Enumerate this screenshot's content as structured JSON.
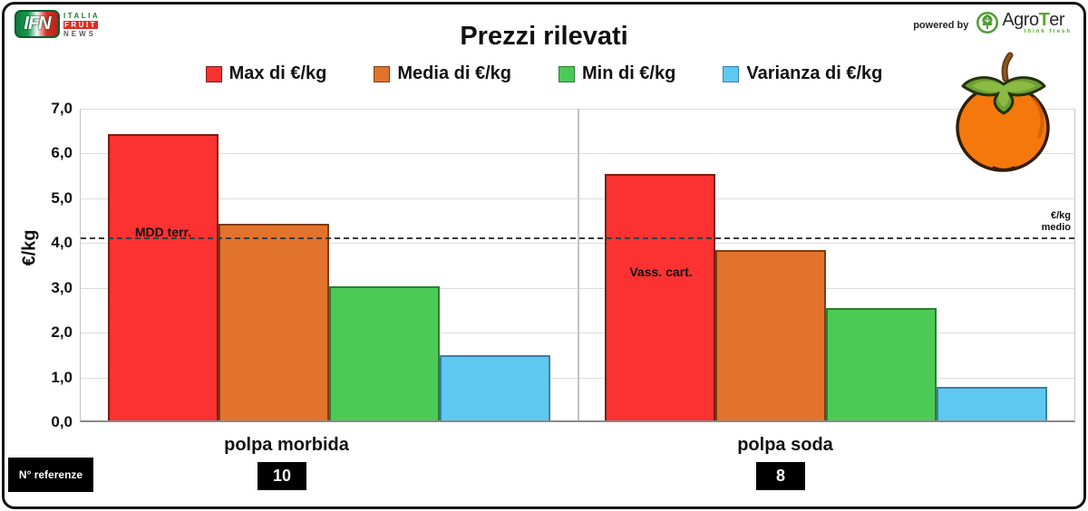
{
  "header": {
    "title": "Prezzi rilevati",
    "ifn_logo": {
      "abbr": "IFN",
      "line1": "ITALIA",
      "line2": "FRUIT",
      "line3": "NEWS"
    },
    "powered_by": "powered by",
    "agroter": {
      "name_head": "Agro",
      "name_accent": "T",
      "name_tail": "er",
      "tagline": "think fresh"
    }
  },
  "legend": {
    "items": [
      {
        "label": "Max di €/kg",
        "color": "#fc3232",
        "border": "#7a1d12"
      },
      {
        "label": "Media di €/kg",
        "color": "#e2732d",
        "border": "#7d3e12"
      },
      {
        "label": "Min di €/kg",
        "color": "#4bcb55",
        "border": "#2f7d33"
      },
      {
        "label": "Varianza di €/kg",
        "color": "#5ec9f0",
        "border": "#3f7fa8"
      }
    ]
  },
  "chart_data": {
    "type": "bar",
    "title": "Prezzi rilevati",
    "xlabel": "",
    "ylabel": "€/kg",
    "ylim": [
      0,
      7
    ],
    "ytick_step": 1.0,
    "ytick_labels": [
      "7,0",
      "6,0",
      "5,0",
      "4,0",
      "3,0",
      "2,0",
      "1,0",
      "0,0"
    ],
    "grid": true,
    "legend_position": "top",
    "categories": [
      "polpa morbida",
      "polpa soda"
    ],
    "series": [
      {
        "name": "Max di €/kg",
        "values": [
          6.4,
          5.5
        ],
        "color": "#fc3232",
        "border": "#7a1d12"
      },
      {
        "name": "Media di €/kg",
        "values": [
          4.4,
          3.8
        ],
        "color": "#e2732d",
        "border": "#7d3e12"
      },
      {
        "name": "Min di €/kg",
        "values": [
          3.0,
          2.5
        ],
        "color": "#4bcb55",
        "border": "#2f7d33"
      },
      {
        "name": "Varianza di €/kg",
        "values": [
          1.45,
          0.75
        ],
        "color": "#5ec9f0",
        "border": "#3f7fa8"
      }
    ],
    "reference_line": {
      "value": 4.13,
      "label_line1": "€/kg",
      "label_line2": "medio"
    },
    "bar_annotations": [
      {
        "text": "MDD terr.",
        "category": "polpa morbida",
        "series": "Max di €/kg"
      },
      {
        "text": "Vass. cart.",
        "category": "polpa soda",
        "series": "Max di €/kg"
      }
    ]
  },
  "footer": {
    "referenze_label": "N° referenze",
    "referenze_values": [
      "10",
      "8"
    ]
  }
}
